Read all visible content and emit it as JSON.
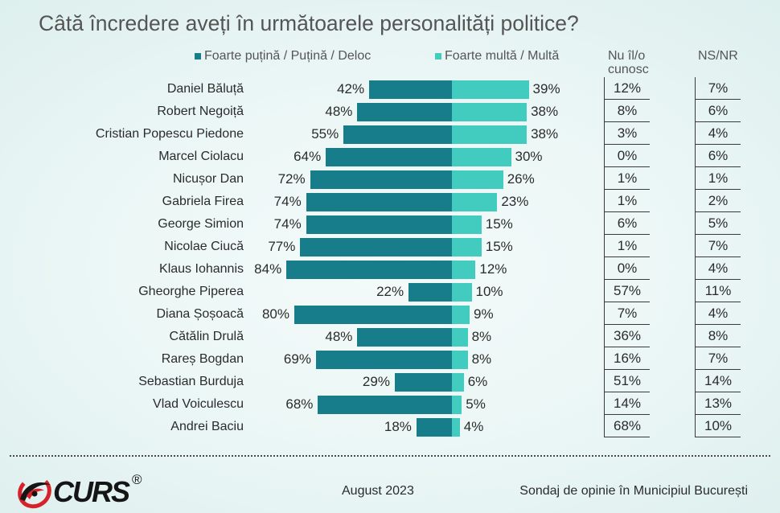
{
  "chart_data": {
    "type": "bar",
    "title": "Câtă încredere aveți în următoarele personalități politice?",
    "categories": [
      "Daniel Băluță",
      "Robert Negoiță",
      "Cristian Popescu Piedone",
      "Marcel Ciolacu",
      "Nicușor Dan",
      "Gabriela Firea",
      "George Simion",
      "Nicolae Ciucă",
      "Klaus Iohannis",
      "Gheorghe Piperea",
      "Diana Șoșoacă",
      "Cătălin Drulă",
      "Rareș Bogdan",
      "Sebastian Burduja",
      "Vlad Voiculescu",
      "Andrei Baciu"
    ],
    "series": [
      {
        "name": "Foarte puțină / Puțină / Deloc",
        "color": "#187d8a",
        "values": [
          42,
          48,
          55,
          64,
          72,
          74,
          74,
          77,
          84,
          22,
          80,
          48,
          69,
          29,
          68,
          18
        ]
      },
      {
        "name": "Foarte multă / Multă",
        "color": "#41ccbf",
        "values": [
          39,
          38,
          38,
          30,
          26,
          23,
          15,
          15,
          12,
          10,
          9,
          8,
          8,
          6,
          5,
          4
        ]
      }
    ],
    "value_suffix": "%",
    "table_columns": [
      {
        "header": "Nu îl/o cunosc",
        "values": [
          12,
          8,
          3,
          0,
          1,
          1,
          6,
          1,
          0,
          57,
          7,
          36,
          16,
          51,
          14,
          68
        ]
      },
      {
        "header": "NS/NR",
        "values": [
          7,
          6,
          4,
          6,
          1,
          2,
          5,
          7,
          4,
          11,
          4,
          8,
          7,
          14,
          13,
          10
        ]
      }
    ]
  },
  "footer": {
    "logo_text": "CURS",
    "logo_mark": "®",
    "date": "August 2023",
    "source": "Sondaj de opinie în Municipiul București"
  },
  "icons": {
    "logo": "curs-swirl-logo-icon"
  },
  "colors": {
    "logo_red": "#d6232b",
    "logo_black": "#151515"
  }
}
